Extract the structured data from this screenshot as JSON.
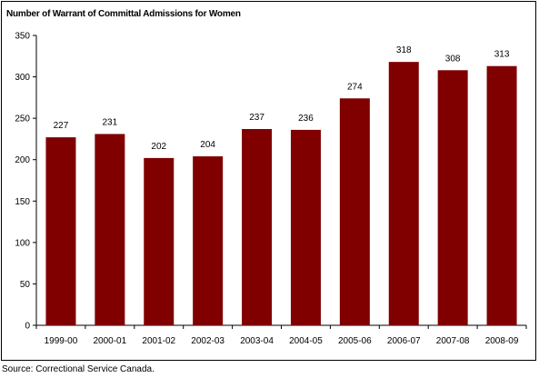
{
  "chart_data": {
    "type": "bar",
    "title": "Number of Warrant of Committal Admissions for Women",
    "categories": [
      "1999-00",
      "2000-01",
      "2001-02",
      "2002-03",
      "2003-04",
      "2004-05",
      "2005-06",
      "2006-07",
      "2007-08",
      "2008-09"
    ],
    "values": [
      227,
      231,
      202,
      204,
      237,
      236,
      274,
      318,
      308,
      313
    ],
    "ylim": [
      0,
      350
    ],
    "yticks": [
      0,
      50,
      100,
      150,
      200,
      250,
      300,
      350
    ],
    "bar_color": "#800000",
    "grid": false,
    "legend": "none",
    "data_labels": true
  },
  "footer": {
    "source": "Source:  Correctional Service Canada."
  }
}
